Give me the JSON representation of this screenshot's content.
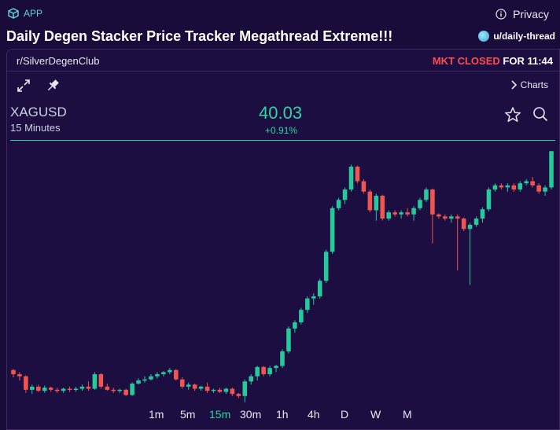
{
  "app": {
    "label": "APP"
  },
  "privacy": {
    "label": "Privacy"
  },
  "post": {
    "title": "Daily Degen Stacker Price Tracker Megathread Extreme!!!",
    "user": "u/daily-thread"
  },
  "widget": {
    "subreddit": "r/SilverDegenClub",
    "market_status": "MKT CLOSED",
    "market_time": "FOR 11:44",
    "charts_label": "Charts",
    "symbol": "XAGUSD",
    "interval": "15 Minutes",
    "price": "40.03",
    "change": "+0.91%"
  },
  "timeframes": [
    {
      "label": "1m",
      "active": false
    },
    {
      "label": "5m",
      "active": false
    },
    {
      "label": "15m",
      "active": true
    },
    {
      "label": "30m",
      "active": false
    },
    {
      "label": "1h",
      "active": false
    },
    {
      "label": "4h",
      "active": false
    },
    {
      "label": "D",
      "active": false
    },
    {
      "label": "W",
      "active": false
    },
    {
      "label": "M",
      "active": false
    }
  ],
  "colors": {
    "up": "#26c99a",
    "down": "#f0554f",
    "accent": "#2fd6a0",
    "closed": "#ff4d4d"
  },
  "chart_data": {
    "type": "candlestick",
    "symbol": "XAGUSD",
    "interval": "15m",
    "ylim": [
      37.6,
      40.1
    ],
    "candles": [
      [
        37.92,
        37.93,
        37.85,
        37.88
      ],
      [
        37.88,
        37.9,
        37.82,
        37.86
      ],
      [
        37.86,
        37.87,
        37.7,
        37.73
      ],
      [
        37.73,
        37.78,
        37.69,
        37.76
      ],
      [
        37.76,
        37.78,
        37.71,
        37.72
      ],
      [
        37.72,
        37.77,
        37.7,
        37.75
      ],
      [
        37.75,
        37.76,
        37.71,
        37.73
      ],
      [
        37.73,
        37.75,
        37.7,
        37.72
      ],
      [
        37.72,
        37.75,
        37.7,
        37.74
      ],
      [
        37.74,
        37.76,
        37.71,
        37.73
      ],
      [
        37.73,
        37.76,
        37.71,
        37.74
      ],
      [
        37.74,
        37.78,
        37.72,
        37.76
      ],
      [
        37.76,
        37.81,
        37.72,
        37.74
      ],
      [
        37.74,
        37.9,
        37.73,
        37.88
      ],
      [
        37.88,
        37.89,
        37.74,
        37.76
      ],
      [
        37.76,
        37.79,
        37.72,
        37.73
      ],
      [
        37.73,
        37.75,
        37.7,
        37.72
      ],
      [
        37.72,
        37.74,
        37.7,
        37.73
      ],
      [
        37.73,
        37.74,
        37.67,
        37.68
      ],
      [
        37.68,
        37.8,
        37.67,
        37.79
      ],
      [
        37.79,
        37.84,
        37.78,
        37.82
      ],
      [
        37.82,
        37.86,
        37.8,
        37.83
      ],
      [
        37.83,
        37.88,
        37.82,
        37.86
      ],
      [
        37.86,
        37.9,
        37.84,
        37.88
      ],
      [
        37.88,
        37.91,
        37.86,
        37.9
      ],
      [
        37.9,
        37.94,
        37.88,
        37.92
      ],
      [
        37.92,
        37.93,
        37.82,
        37.83
      ],
      [
        37.83,
        37.85,
        37.74,
        37.76
      ],
      [
        37.76,
        37.8,
        37.73,
        37.78
      ],
      [
        37.78,
        37.79,
        37.72,
        37.74
      ],
      [
        37.74,
        37.77,
        37.72,
        37.76
      ],
      [
        37.76,
        37.8,
        37.7,
        37.72
      ],
      [
        37.72,
        37.74,
        37.7,
        37.73
      ],
      [
        37.73,
        37.75,
        37.7,
        37.71
      ],
      [
        37.71,
        37.75,
        37.69,
        37.74
      ],
      [
        37.74,
        37.75,
        37.67,
        37.69
      ],
      [
        37.69,
        37.7,
        37.65,
        37.67
      ],
      [
        37.67,
        37.83,
        37.61,
        37.81
      ],
      [
        37.81,
        37.88,
        37.78,
        37.86
      ],
      [
        37.86,
        37.96,
        37.82,
        37.95
      ],
      [
        37.95,
        37.96,
        37.86,
        37.88
      ],
      [
        37.88,
        37.96,
        37.86,
        37.94
      ],
      [
        37.94,
        37.97,
        37.9,
        37.96
      ],
      [
        37.96,
        38.12,
        37.94,
        38.1
      ],
      [
        38.1,
        38.34,
        38.08,
        38.32
      ],
      [
        38.32,
        38.4,
        38.28,
        38.38
      ],
      [
        38.38,
        38.52,
        38.36,
        38.5
      ],
      [
        38.5,
        38.63,
        38.47,
        38.61
      ],
      [
        38.61,
        38.66,
        38.55,
        38.63
      ],
      [
        38.63,
        38.8,
        38.61,
        38.78
      ],
      [
        38.78,
        39.08,
        38.76,
        39.06
      ],
      [
        39.06,
        39.5,
        39.04,
        39.48
      ],
      [
        39.48,
        39.58,
        39.46,
        39.56
      ],
      [
        39.56,
        39.68,
        39.52,
        39.66
      ],
      [
        39.66,
        39.9,
        39.64,
        39.88
      ],
      [
        39.88,
        39.89,
        39.72,
        39.74
      ],
      [
        39.74,
        39.76,
        39.62,
        39.64
      ],
      [
        39.64,
        39.66,
        39.44,
        39.46
      ],
      [
        39.46,
        39.62,
        39.36,
        39.6
      ],
      [
        39.6,
        39.61,
        39.36,
        39.38
      ],
      [
        39.38,
        39.46,
        39.36,
        39.44
      ],
      [
        39.44,
        39.46,
        39.4,
        39.42
      ],
      [
        39.42,
        39.46,
        39.38,
        39.44
      ],
      [
        39.44,
        39.48,
        39.4,
        39.42
      ],
      [
        39.42,
        39.5,
        39.36,
        39.48
      ],
      [
        39.48,
        39.58,
        39.46,
        39.56
      ],
      [
        39.56,
        39.68,
        39.54,
        39.66
      ],
      [
        39.66,
        39.67,
        39.14,
        39.42
      ],
      [
        39.42,
        39.43,
        39.38,
        39.4
      ],
      [
        39.4,
        39.42,
        39.36,
        39.38
      ],
      [
        39.38,
        39.42,
        39.34,
        39.4
      ],
      [
        39.4,
        39.42,
        38.88,
        39.38
      ],
      [
        39.38,
        39.39,
        39.26,
        39.28
      ],
      [
        39.28,
        39.34,
        38.74,
        39.32
      ],
      [
        39.32,
        39.4,
        39.3,
        39.38
      ],
      [
        39.38,
        39.49,
        39.34,
        39.47
      ],
      [
        39.47,
        39.68,
        39.45,
        39.66
      ],
      [
        39.66,
        39.72,
        39.64,
        39.7
      ],
      [
        39.7,
        39.72,
        39.66,
        39.68
      ],
      [
        39.68,
        39.72,
        39.64,
        39.7
      ],
      [
        39.7,
        39.72,
        39.64,
        39.66
      ],
      [
        39.66,
        39.74,
        39.64,
        39.72
      ],
      [
        39.72,
        39.76,
        39.7,
        39.74
      ],
      [
        39.74,
        39.78,
        39.68,
        39.7
      ],
      [
        39.7,
        39.72,
        39.62,
        39.64
      ],
      [
        39.64,
        39.7,
        39.6,
        39.68
      ],
      [
        39.68,
        40.03,
        39.66,
        40.03
      ]
    ]
  }
}
